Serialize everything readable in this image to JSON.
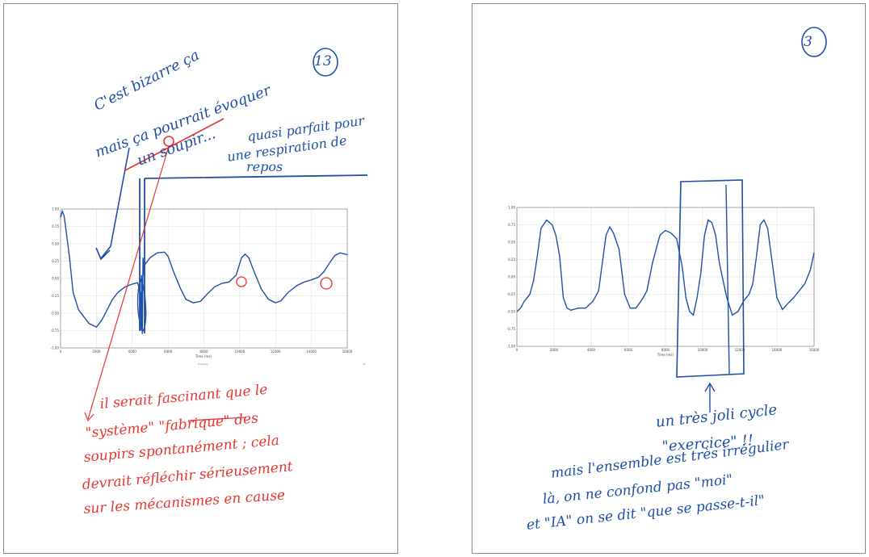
{
  "left_page": {
    "page_number": "13",
    "note_sigh": [
      "C'est bizarre ça",
      "mais ça pourrait évoquer",
      "un soupir..."
    ],
    "note_rest": [
      "quasi parfait pour",
      "une respiration de",
      "repos"
    ],
    "note_red": [
      "il serait fascinant que le",
      "\"système\" \"fabrique\" des",
      "soupirs spontanément ; cela",
      "devrait réfléchir sérieusement",
      "sur les mécanismes en cause"
    ],
    "chart_footer_left": "Trimotyy",
    "chart_footer_right": "11"
  },
  "right_page": {
    "page_number": "3",
    "note_cycle": [
      "un très joli cycle",
      "\"exercice\" !!"
    ],
    "note_irregular": [
      "mais l'ensemble est très irrégulier",
      "là, on ne confond pas \"moi\"",
      "et \"IA\" on se dit \"que se passe-t-il\""
    ]
  },
  "chart_data": [
    {
      "type": "line",
      "title": "",
      "xlabel": "Time (ms)",
      "ylabel": "",
      "xlim": [
        0,
        16000
      ],
      "ylim": [
        -1.0,
        1.0
      ],
      "grid": true,
      "x_ticks": [
        "0",
        "2000",
        "4000",
        "6000",
        "8000",
        "10000",
        "12000",
        "14000",
        "16000"
      ],
      "y_ticks": [
        "1.00",
        "0.75",
        "0.50",
        "0.25",
        "0.00",
        "-0.25",
        "-0.50",
        "-0.75",
        "-1.00"
      ],
      "series": [
        {
          "x": [
            0,
            100,
            200,
            300,
            500,
            700,
            1000,
            1300,
            1600,
            2000,
            2300,
            2600,
            2900,
            3200,
            3600,
            4000,
            4300,
            4450,
            4500,
            4520,
            4560,
            4600,
            4650,
            4700,
            5000,
            5400,
            5800,
            6000,
            6300,
            6700,
            7000,
            7400,
            7800,
            8200,
            8600,
            9000,
            9400,
            9800,
            10100,
            10300,
            10500,
            10800,
            11200,
            11600,
            12000,
            12300,
            12700,
            13200,
            13600,
            14000,
            14400,
            14700,
            15000,
            15300,
            15600,
            15900,
            16000
          ],
          "y": [
            0.88,
            0.97,
            0.9,
            0.7,
            0.3,
            -0.2,
            -0.45,
            -0.55,
            -0.65,
            -0.7,
            -0.6,
            -0.45,
            -0.3,
            -0.2,
            -0.12,
            -0.08,
            -0.06,
            -0.2,
            -0.75,
            0.05,
            -0.8,
            0.3,
            0.05,
            0.2,
            0.3,
            0.37,
            0.38,
            0.32,
            0.1,
            -0.15,
            -0.3,
            -0.35,
            -0.33,
            -0.22,
            -0.12,
            -0.07,
            -0.05,
            0.05,
            0.3,
            0.35,
            0.3,
            0.1,
            -0.15,
            -0.3,
            -0.35,
            -0.32,
            -0.2,
            -0.1,
            -0.05,
            -0.02,
            0.02,
            0.1,
            0.22,
            0.33,
            0.37,
            0.35,
            0.34
          ]
        }
      ]
    },
    {
      "type": "line",
      "title": "",
      "xlabel": "Time (ms)",
      "ylabel": "",
      "xlim": [
        0,
        16000
      ],
      "ylim": [
        -1.0,
        1.0
      ],
      "grid": true,
      "x_ticks": [
        "0",
        "2000",
        "4000",
        "6000",
        "8000",
        "10000",
        "12000",
        "14000",
        "16000"
      ],
      "y_ticks": [
        "1.00",
        "0.75",
        "0.50",
        "0.25",
        "0.00",
        "-0.25",
        "-0.50",
        "-0.75",
        "-1.00"
      ],
      "series": [
        {
          "x": [
            0,
            200,
            400,
            700,
            900,
            1100,
            1300,
            1600,
            1900,
            2100,
            2300,
            2500,
            2700,
            2900,
            3300,
            3700,
            4100,
            4400,
            4600,
            4800,
            5000,
            5200,
            5500,
            5800,
            6100,
            6400,
            6600,
            6800,
            7000,
            7300,
            7700,
            8000,
            8300,
            8600,
            8900,
            9100,
            9300,
            9500,
            9700,
            9900,
            10100,
            10300,
            10500,
            10700,
            10900,
            11300,
            11600,
            11900,
            12200,
            12500,
            12700,
            12900,
            13100,
            13300,
            13500,
            13700,
            14000,
            14300,
            14600,
            14900,
            15200,
            15500,
            15800,
            16000
          ],
          "y": [
            -0.5,
            -0.45,
            -0.35,
            -0.25,
            -0.05,
            0.3,
            0.7,
            0.82,
            0.75,
            0.6,
            0.3,
            -0.3,
            -0.45,
            -0.48,
            -0.45,
            -0.45,
            -0.35,
            -0.2,
            0.2,
            0.6,
            0.72,
            0.63,
            0.4,
            -0.25,
            -0.45,
            -0.45,
            -0.38,
            -0.3,
            -0.2,
            0.2,
            0.6,
            0.67,
            0.63,
            0.55,
            0.15,
            -0.3,
            -0.5,
            -0.55,
            -0.3,
            0.05,
            0.6,
            0.82,
            0.78,
            0.6,
            0.2,
            -0.3,
            -0.55,
            -0.5,
            -0.35,
            -0.25,
            -0.1,
            0.3,
            0.75,
            0.82,
            0.7,
            0.3,
            -0.3,
            -0.47,
            -0.38,
            -0.3,
            -0.2,
            -0.1,
            0.1,
            0.35
          ]
        }
      ]
    }
  ]
}
